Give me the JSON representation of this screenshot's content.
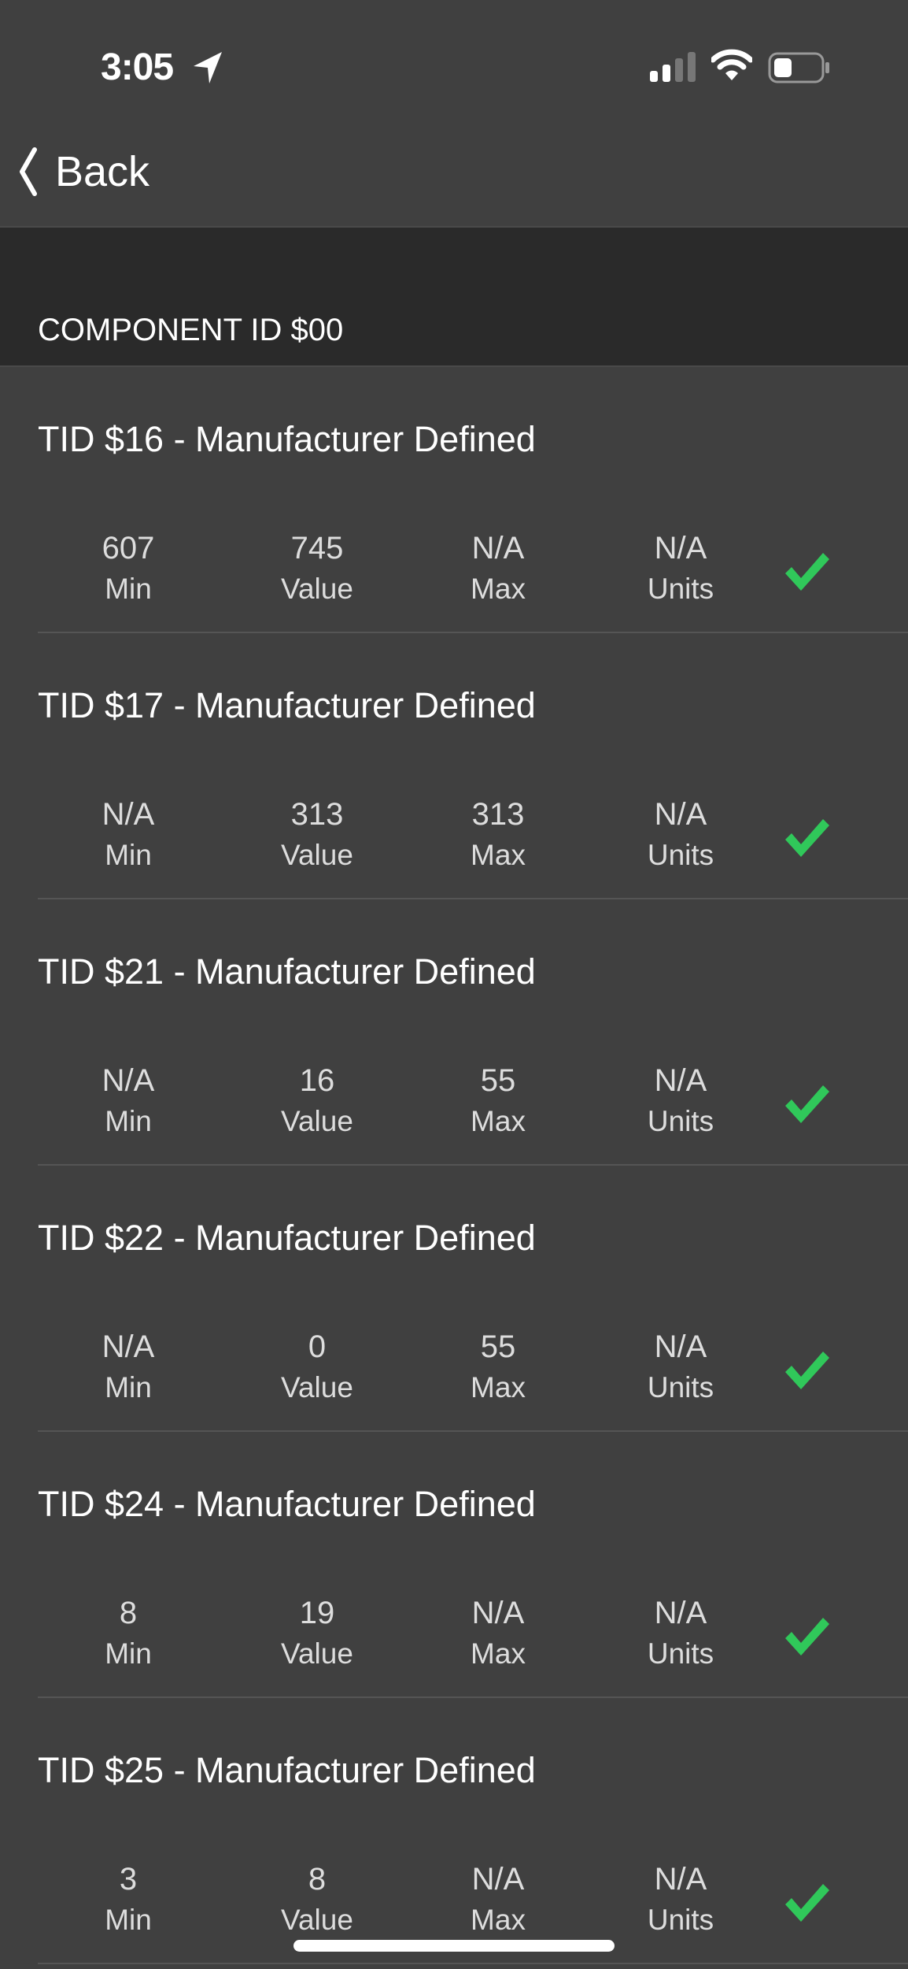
{
  "status_bar": {
    "time": "3:05",
    "icons": [
      "location-arrow-icon",
      "signal-icon",
      "wifi-icon",
      "battery-icon"
    ]
  },
  "nav": {
    "back_label": "Back"
  },
  "section": {
    "title": "COMPONENT ID $00"
  },
  "labels": {
    "min": "Min",
    "value": "Value",
    "max": "Max",
    "units": "Units"
  },
  "colors": {
    "background": "#404040",
    "section_bg": "#2a2a2a",
    "check": "#30c85a"
  },
  "rows": [
    {
      "title": "TID $16 - Manufacturer Defined",
      "min": "607",
      "value": "745",
      "max": "N/A",
      "units": "N/A",
      "status": "pass"
    },
    {
      "title": "TID $17 - Manufacturer Defined",
      "min": "N/A",
      "value": "313",
      "max": "313",
      "units": "N/A",
      "status": "pass"
    },
    {
      "title": "TID $21 - Manufacturer Defined",
      "min": "N/A",
      "value": "16",
      "max": "55",
      "units": "N/A",
      "status": "pass"
    },
    {
      "title": "TID $22 - Manufacturer Defined",
      "min": "N/A",
      "value": "0",
      "max": "55",
      "units": "N/A",
      "status": "pass"
    },
    {
      "title": "TID $24 - Manufacturer Defined",
      "min": "8",
      "value": "19",
      "max": "N/A",
      "units": "N/A",
      "status": "pass"
    },
    {
      "title": "TID $25 - Manufacturer Defined",
      "min": "3",
      "value": "8",
      "max": "N/A",
      "units": "N/A",
      "status": "pass"
    }
  ]
}
